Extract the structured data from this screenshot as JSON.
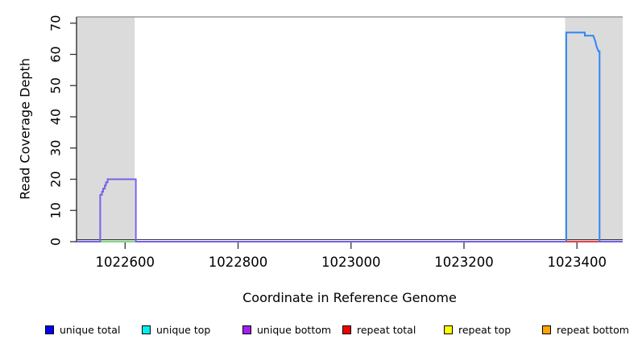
{
  "chart_data": {
    "type": "line",
    "title": "",
    "xlabel": "Coordinate in Reference Genome",
    "ylabel": "Read Coverage Depth",
    "xlim": [
      1022514,
      1023481
    ],
    "ylim": [
      0,
      72
    ],
    "x_ticks": [
      {
        "value": 1022600,
        "label": "1022600"
      },
      {
        "value": 1022800,
        "label": "1022800"
      },
      {
        "value": 1023000,
        "label": "1023000"
      },
      {
        "value": 1023200,
        "label": "1023200"
      },
      {
        "value": 1023400,
        "label": "1023400"
      }
    ],
    "y_ticks": [
      {
        "value": 0,
        "label": "0"
      },
      {
        "value": 10,
        "label": "10"
      },
      {
        "value": 20,
        "label": "20"
      },
      {
        "value": 30,
        "label": "30"
      },
      {
        "value": 40,
        "label": "40"
      },
      {
        "value": 50,
        "label": "50"
      },
      {
        "value": 60,
        "label": "60"
      },
      {
        "value": 70,
        "label": "70"
      }
    ],
    "grid": false,
    "legend_position": "bottom",
    "shaded_regions": [
      {
        "name": "left-gray-region",
        "x0": 1022514,
        "x1": 1022617,
        "color": "#DBDBDB"
      },
      {
        "name": "right-gray-region",
        "x0": 1023379,
        "x1": 1023481,
        "color": "#DBDBDB"
      }
    ],
    "series": [
      {
        "name": "unique-bottom-baseline",
        "color": "#7661E8",
        "width": 2,
        "points": [
          [
            1022514,
            0
          ],
          [
            1023481,
            0
          ]
        ]
      },
      {
        "name": "green-baseline-segment",
        "color": "#7FD97F",
        "width": 2,
        "points": [
          [
            1022557,
            0
          ],
          [
            1022618,
            0
          ]
        ]
      },
      {
        "name": "repeat-baseline-segment",
        "color": "#E8404E",
        "width": 2,
        "points": [
          [
            1023379,
            0
          ],
          [
            1023440,
            0
          ]
        ]
      },
      {
        "name": "left-unique-coverage-peak",
        "color": "#7661E8",
        "width": 2,
        "points": [
          [
            1022556,
            0
          ],
          [
            1022556,
            15
          ],
          [
            1022559,
            15
          ],
          [
            1022559,
            16
          ],
          [
            1022561,
            16
          ],
          [
            1022561,
            17
          ],
          [
            1022564,
            17
          ],
          [
            1022564,
            18
          ],
          [
            1022566,
            18
          ],
          [
            1022566,
            19
          ],
          [
            1022569,
            19
          ],
          [
            1022569,
            20
          ],
          [
            1022619,
            20
          ],
          [
            1022619,
            0
          ]
        ]
      },
      {
        "name": "right-unique-coverage-peak",
        "color": "#2E86F7",
        "width": 2,
        "points": [
          [
            1023381,
            0
          ],
          [
            1023381,
            67
          ],
          [
            1023414,
            67
          ],
          [
            1023414,
            66
          ],
          [
            1023429,
            66
          ],
          [
            1023431,
            65
          ],
          [
            1023433,
            64
          ],
          [
            1023434,
            63
          ],
          [
            1023436,
            62
          ],
          [
            1023438,
            61
          ],
          [
            1023440,
            61
          ],
          [
            1023440,
            0
          ]
        ]
      }
    ],
    "legend": [
      {
        "label": "unique total",
        "color": "#0000EE"
      },
      {
        "label": "unique top",
        "color": "#00EEEE"
      },
      {
        "label": "unique bottom",
        "color": "#A020F0"
      },
      {
        "label": "repeat total",
        "color": "#EE0000"
      },
      {
        "label": "repeat top",
        "color": "#FFFF00"
      },
      {
        "label": "repeat bottom",
        "color": "#FFA500"
      }
    ],
    "axis_colors": {
      "frame_top": "#9A9A9A",
      "axis": "#333333",
      "tick": "#333333",
      "tick_label": "#000000"
    }
  }
}
